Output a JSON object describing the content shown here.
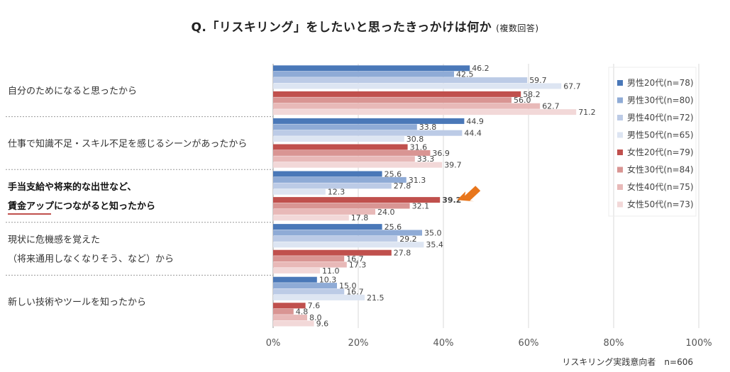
{
  "title": {
    "main": "Q.「リスキリング」をしたいと思ったきっかけは何か",
    "note": "(複数回答)"
  },
  "footnote": "リスキリング実践意向者　n=606",
  "colors": {
    "series": [
      "#4a78b8",
      "#8fabd6",
      "#bccbe6",
      "#dde5f2",
      "#c0504d",
      "#d99593",
      "#e8b9b8",
      "#f2d8d8"
    ],
    "arrow": "#e8761c",
    "highlight_underline": "#c0504d"
  },
  "chart_data": {
    "type": "bar",
    "orientation": "horizontal",
    "categories": [
      [
        "自分のためになると思ったから"
      ],
      [
        "仕事で知識不足・スキル不足を感じるシーンがあったから"
      ],
      [
        "手当支給や将来的な出世など、",
        "賃金アップにつながると知ったから"
      ],
      [
        "現状に危機感を覚えた",
        "（将来通用しなくなりそう、など）から"
      ],
      [
        "新しい技術やツールを知ったから"
      ]
    ],
    "highlight_category": 2,
    "highlight_value": {
      "category": 2,
      "series": 4
    },
    "series": [
      {
        "name": "男性20代(n=78)",
        "values": [
          46.2,
          44.9,
          25.6,
          25.6,
          10.3
        ]
      },
      {
        "name": "男性30代(n=80)",
        "values": [
          42.5,
          33.8,
          31.3,
          35.0,
          15.0
        ]
      },
      {
        "name": "男性40代(n=72)",
        "values": [
          59.7,
          44.4,
          27.8,
          29.2,
          16.7
        ]
      },
      {
        "name": "男性50代(n=65)",
        "values": [
          67.7,
          30.8,
          12.3,
          35.4,
          21.5
        ]
      },
      {
        "name": "女性20代(n=79)",
        "values": [
          58.2,
          31.6,
          39.2,
          27.8,
          7.6
        ]
      },
      {
        "name": "女性30代(n=84)",
        "values": [
          56.0,
          36.9,
          32.1,
          16.7,
          4.8
        ]
      },
      {
        "name": "女性40代(n=75)",
        "values": [
          62.7,
          33.3,
          24.0,
          17.3,
          8.0
        ]
      },
      {
        "name": "女性50代(n=73)",
        "values": [
          71.2,
          39.7,
          17.8,
          11.0,
          9.6
        ]
      }
    ],
    "x_ticks": [
      "0%",
      "20%",
      "40%",
      "60%",
      "80%",
      "100%"
    ],
    "xlim": [
      0,
      100
    ],
    "grid": true,
    "legend_position": "right"
  }
}
